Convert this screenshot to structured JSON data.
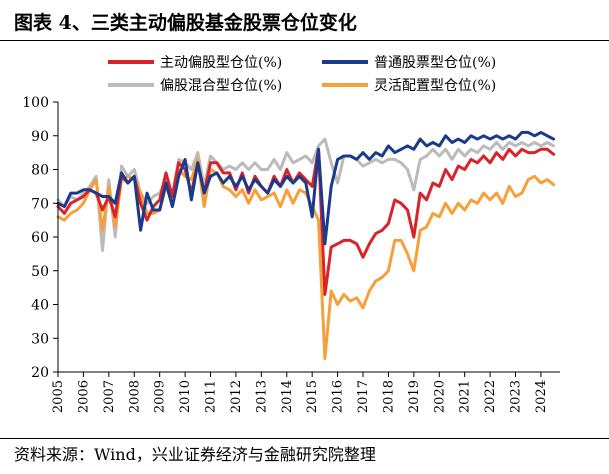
{
  "figure": {
    "title": "图表 4、三类主动偏股基金股票仓位变化",
    "source": "资料来源：Wind，兴业证券经济与金融研究院整理"
  },
  "chart_data": {
    "type": "line",
    "title": "",
    "xlabel": "",
    "ylabel": "",
    "ylim": [
      20,
      100
    ],
    "yticks": [
      20,
      30,
      40,
      50,
      60,
      70,
      80,
      90,
      100
    ],
    "xlim": [
      2005,
      2024.75
    ],
    "x_tick_labels": [
      "2005",
      "2006",
      "2007",
      "2008",
      "2009",
      "2010",
      "2011",
      "2012",
      "2013",
      "2014",
      "2015",
      "2016",
      "2017",
      "2018",
      "2019",
      "2020",
      "2021",
      "2022",
      "2023",
      "2024"
    ],
    "grid": false,
    "legend_position": "top",
    "x": [
      2005.0,
      2005.25,
      2005.5,
      2005.75,
      2006.0,
      2006.25,
      2006.5,
      2006.75,
      2007.0,
      2007.25,
      2007.5,
      2007.75,
      2008.0,
      2008.25,
      2008.5,
      2008.75,
      2009.0,
      2009.25,
      2009.5,
      2009.75,
      2010.0,
      2010.25,
      2010.5,
      2010.75,
      2011.0,
      2011.25,
      2011.5,
      2011.75,
      2012.0,
      2012.25,
      2012.5,
      2012.75,
      2013.0,
      2013.25,
      2013.5,
      2013.75,
      2014.0,
      2014.25,
      2014.5,
      2014.75,
      2015.0,
      2015.25,
      2015.5,
      2015.75,
      2016.0,
      2016.25,
      2016.5,
      2016.75,
      2017.0,
      2017.25,
      2017.5,
      2017.75,
      2018.0,
      2018.25,
      2018.5,
      2018.75,
      2019.0,
      2019.25,
      2019.5,
      2019.75,
      2020.0,
      2020.25,
      2020.5,
      2020.75,
      2021.0,
      2021.25,
      2021.5,
      2021.75,
      2022.0,
      2022.25,
      2022.5,
      2022.75,
      2023.0,
      2023.25,
      2023.5,
      2023.75,
      2024.0,
      2024.25,
      2024.5
    ],
    "series": [
      {
        "name": "主动偏股型仓位(%)",
        "color": "#d9232b",
        "values": [
          69,
          67,
          70,
          71,
          72,
          74,
          73,
          68,
          72,
          66,
          78,
          76,
          78,
          70,
          65,
          69,
          71,
          79,
          72,
          82,
          80,
          73,
          82,
          73,
          82,
          82,
          79,
          79,
          74,
          79,
          73,
          78,
          75,
          73,
          78,
          75,
          80,
          76,
          79,
          77,
          75,
          86,
          43,
          57,
          58,
          59,
          59,
          58,
          54,
          58,
          61,
          62,
          64,
          71,
          70,
          68,
          60,
          73,
          71,
          76,
          75,
          80,
          77,
          81,
          80,
          83,
          82,
          84,
          82,
          85,
          83,
          86,
          84,
          86,
          85,
          85,
          86,
          86,
          84.5
        ]
      },
      {
        "name": "普通股票型仓位(%)",
        "color": "#1a3a8c",
        "values": [
          70,
          69,
          73,
          73,
          74,
          74,
          73,
          72,
          72,
          70,
          79,
          76,
          78,
          62,
          73,
          68,
          68,
          76,
          69,
          78,
          83,
          71,
          82,
          73,
          78,
          79,
          76,
          78,
          75,
          78,
          74,
          77,
          75,
          73,
          77,
          75,
          78,
          76,
          78,
          76,
          66,
          86,
          58,
          75,
          83,
          84,
          84,
          83,
          85,
          83,
          85,
          84,
          87,
          85,
          86,
          87,
          86,
          89,
          87,
          88,
          87,
          90,
          88,
          89,
          88,
          90,
          89,
          90,
          89,
          90,
          89,
          90,
          89,
          91,
          91,
          90,
          91,
          90,
          89
        ]
      },
      {
        "name": "偏股混合型仓位(%)",
        "color": "#bbbbbb",
        "values": [
          71,
          69,
          72,
          71,
          73,
          75,
          78,
          56,
          77,
          60,
          81,
          78,
          80,
          73,
          70,
          72,
          73,
          77,
          73,
          83,
          82,
          80,
          85,
          75,
          84,
          82,
          80,
          81,
          80,
          82,
          80,
          82,
          80,
          80,
          83,
          80,
          85,
          82,
          83,
          84,
          82,
          87,
          89,
          82,
          76,
          84,
          84,
          83,
          81,
          82,
          83,
          82,
          83,
          83,
          82,
          80,
          74,
          83,
          84,
          86,
          84,
          86,
          83,
          86,
          84,
          86,
          85,
          87,
          86,
          88,
          86,
          88,
          87,
          88,
          87,
          88,
          87,
          88,
          87
        ]
      },
      {
        "name": "灵活配置型仓位(%)",
        "color": "#f7a03a",
        "values": [
          66,
          65,
          67,
          68,
          70,
          74,
          77,
          62,
          75,
          63,
          77,
          78,
          77,
          73,
          67,
          67,
          68,
          75,
          70,
          80,
          78,
          77,
          83,
          69,
          80,
          79,
          75,
          74,
          72,
          74,
          70,
          74,
          71,
          72,
          73,
          69,
          74,
          70,
          74,
          73,
          69,
          65,
          24,
          44,
          40,
          43,
          41,
          42,
          39,
          44,
          47,
          48,
          50,
          59,
          59,
          55,
          50,
          62,
          63,
          67,
          66,
          70,
          67,
          70,
          68,
          71,
          70,
          73,
          71,
          73,
          70,
          75,
          72,
          73,
          77,
          78,
          76,
          77,
          75.5
        ]
      }
    ]
  }
}
